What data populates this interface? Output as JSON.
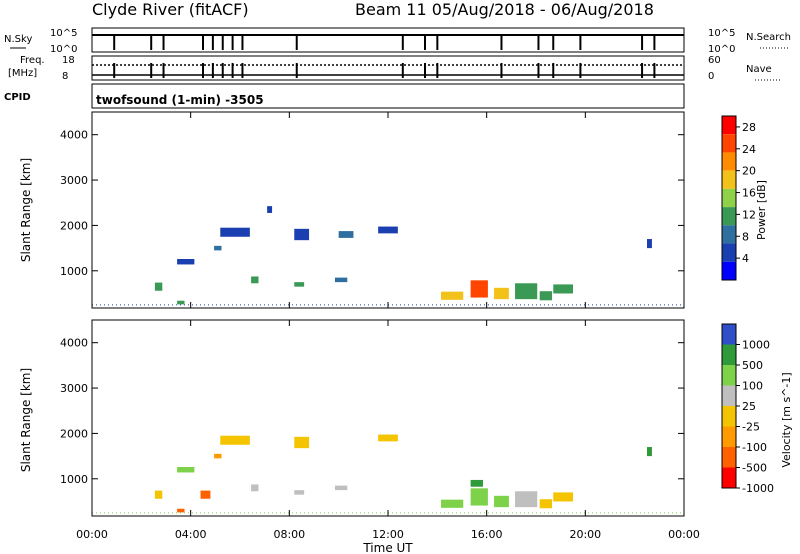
{
  "header": {
    "site": "Clyde River (fitACF)",
    "beam_date": "Beam 11 05/Aug/2018 - 06/Aug/2018"
  },
  "status_panels": {
    "nsky_label": "N.Sky",
    "nsky_ticks": [
      "10^5",
      "10^0"
    ],
    "nsearch_label": "N.Search",
    "nsearch_ticks": [
      "10^5",
      "10^0"
    ],
    "freq_label": "Freq.",
    "freq_unit": "[MHz]",
    "freq_ticks": [
      "18",
      "8"
    ],
    "nave_label": "Nave",
    "nave_ticks": [
      "60",
      "0"
    ],
    "cpid_label": "CPID",
    "cpid_value": "twofsound (1-min) -3505"
  },
  "x_axis": {
    "label": "Time UT",
    "ticks": [
      "00:00",
      "04:00",
      "08:00",
      "12:00",
      "16:00",
      "20:00",
      "00:00"
    ]
  },
  "colors": {
    "power": [
      "#0000ff",
      "#1a3fb0",
      "#2f6fa0",
      "#3a9a55",
      "#8fd24a",
      "#f2c21a",
      "#ff8c00",
      "#ff4500",
      "#ff0000"
    ],
    "velocity": [
      "#ff0000",
      "#ff6000",
      "#ff9a00",
      "#f5c400",
      "#bfbfbf",
      "#7dd24a",
      "#2f9a3a",
      "#2f4fc8"
    ]
  },
  "chart_data": [
    {
      "type": "heatmap",
      "name": "power",
      "ylabel": "Slant Range [km]",
      "ylim": [
        180,
        4500
      ],
      "yticks": [
        "1000",
        "2000",
        "3000",
        "4000"
      ],
      "colorbar_label": "Power [dB]",
      "colorbar_ticks": [
        "4",
        "8",
        "12",
        "16",
        "20",
        "24",
        "28"
      ],
      "clim": [
        0,
        30
      ],
      "regions": [
        {
          "t": 3.8,
          "r": 1200,
          "dt": 0.7,
          "dr": 120,
          "v": 5
        },
        {
          "t": 2.7,
          "r": 650,
          "dt": 0.3,
          "dr": 180,
          "v": 12
        },
        {
          "t": 3.6,
          "r": 300,
          "dt": 0.3,
          "dr": 80,
          "v": 10
        },
        {
          "t": 5.1,
          "r": 1500,
          "dt": 0.3,
          "dr": 100,
          "v": 8
        },
        {
          "t": 5.8,
          "r": 1850,
          "dt": 1.2,
          "dr": 200,
          "v": 6
        },
        {
          "t": 6.6,
          "r": 800,
          "dt": 0.3,
          "dr": 150,
          "v": 12
        },
        {
          "t": 7.2,
          "r": 2350,
          "dt": 0.2,
          "dr": 150,
          "v": 6
        },
        {
          "t": 8.4,
          "r": 700,
          "dt": 0.4,
          "dr": 100,
          "v": 12
        },
        {
          "t": 8.5,
          "r": 1800,
          "dt": 0.6,
          "dr": 250,
          "v": 6
        },
        {
          "t": 10.1,
          "r": 800,
          "dt": 0.5,
          "dr": 100,
          "v": 8
        },
        {
          "t": 10.3,
          "r": 1800,
          "dt": 0.6,
          "dr": 150,
          "v": 7
        },
        {
          "t": 12.0,
          "r": 1900,
          "dt": 0.8,
          "dr": 150,
          "v": 6
        },
        {
          "t": 14.6,
          "r": 450,
          "dt": 0.9,
          "dr": 180,
          "v": 18
        },
        {
          "t": 15.7,
          "r": 600,
          "dt": 0.7,
          "dr": 380,
          "v": 24
        },
        {
          "t": 16.6,
          "r": 500,
          "dt": 0.6,
          "dr": 250,
          "v": 18
        },
        {
          "t": 17.6,
          "r": 550,
          "dt": 0.9,
          "dr": 350,
          "v": 12
        },
        {
          "t": 18.4,
          "r": 450,
          "dt": 0.5,
          "dr": 200,
          "v": 10
        },
        {
          "t": 19.1,
          "r": 600,
          "dt": 0.8,
          "dr": 200,
          "v": 10
        },
        {
          "t": 22.6,
          "r": 1600,
          "dt": 0.2,
          "dr": 200,
          "v": 6
        }
      ]
    },
    {
      "type": "heatmap",
      "name": "velocity",
      "ylabel": "Slant Range [km]",
      "ylim": [
        180,
        4500
      ],
      "yticks": [
        "1000",
        "2000",
        "3000",
        "4000"
      ],
      "colorbar_label": "Velocity [m s^-1]",
      "colorbar_ticks": [
        "1000",
        "500",
        "100",
        "25",
        "-25",
        "-100",
        "-500",
        "-1000"
      ],
      "clim": [
        -1000,
        1000
      ],
      "regions": [
        {
          "t": 3.8,
          "r": 1200,
          "dt": 0.7,
          "dr": 120,
          "v": 200
        },
        {
          "t": 2.7,
          "r": 650,
          "dt": 0.3,
          "dr": 180,
          "v": 0
        },
        {
          "t": 3.6,
          "r": 300,
          "dt": 0.3,
          "dr": 80,
          "v": -150
        },
        {
          "t": 4.6,
          "r": 650,
          "dt": 0.4,
          "dr": 180,
          "v": -200
        },
        {
          "t": 5.1,
          "r": 1500,
          "dt": 0.3,
          "dr": 100,
          "v": -80
        },
        {
          "t": 5.8,
          "r": 1850,
          "dt": 1.2,
          "dr": 200,
          "v": 0
        },
        {
          "t": 6.6,
          "r": 800,
          "dt": 0.3,
          "dr": 150,
          "v": 60
        },
        {
          "t": 8.4,
          "r": 700,
          "dt": 0.4,
          "dr": 100,
          "v": 60
        },
        {
          "t": 8.5,
          "r": 1800,
          "dt": 0.6,
          "dr": 250,
          "v": 0
        },
        {
          "t": 10.1,
          "r": 800,
          "dt": 0.5,
          "dr": 100,
          "v": 60
        },
        {
          "t": 12.0,
          "r": 1900,
          "dt": 0.8,
          "dr": 150,
          "v": 0
        },
        {
          "t": 14.6,
          "r": 450,
          "dt": 0.9,
          "dr": 180,
          "v": 150
        },
        {
          "t": 15.7,
          "r": 600,
          "dt": 0.7,
          "dr": 380,
          "v": 200
        },
        {
          "t": 15.6,
          "r": 900,
          "dt": 0.5,
          "dr": 150,
          "v": 600
        },
        {
          "t": 16.6,
          "r": 500,
          "dt": 0.6,
          "dr": 250,
          "v": 150
        },
        {
          "t": 17.6,
          "r": 550,
          "dt": 0.9,
          "dr": 350,
          "v": 100
        },
        {
          "t": 18.4,
          "r": 450,
          "dt": 0.5,
          "dr": 200,
          "v": 0
        },
        {
          "t": 19.1,
          "r": 600,
          "dt": 0.8,
          "dr": 200,
          "v": 0
        },
        {
          "t": 22.6,
          "r": 1600,
          "dt": 0.2,
          "dr": 200,
          "v": 600
        }
      ]
    }
  ]
}
